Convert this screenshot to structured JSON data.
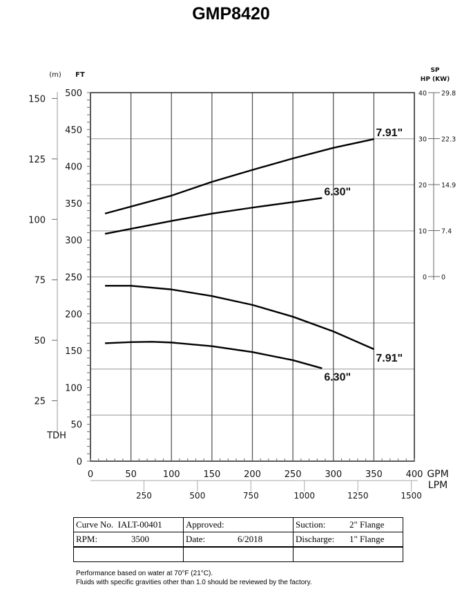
{
  "chart_data": {
    "type": "line",
    "title": "GMP8420",
    "xlabel": "GPM",
    "xlabel2": "LPM",
    "ylabel": "TDH",
    "y_unit_left_m": "(m)",
    "y_unit_left_ft": "FT",
    "y_right_label_top": "SP",
    "y_right_label": "HP  (KW)",
    "xlim": [
      0,
      400
    ],
    "ylim": [
      0,
      500
    ],
    "x_ticks": [
      0,
      50,
      100,
      150,
      200,
      250,
      300,
      350,
      400
    ],
    "y_ticks": [
      0,
      50,
      100,
      150,
      200,
      250,
      300,
      350,
      400,
      450,
      500
    ],
    "m_ticks": [
      25,
      50,
      75,
      100,
      125,
      150
    ],
    "lpm_ticks": [
      250,
      500,
      750,
      1000,
      1250,
      1500
    ],
    "hp_ticks": [
      {
        "hp": 0,
        "kw": "0"
      },
      {
        "hp": 10,
        "kw": "7.4"
      },
      {
        "hp": 20,
        "kw": "14.9"
      },
      {
        "hp": 30,
        "kw": "22.3"
      },
      {
        "hp": 40,
        "kw": "29.8"
      }
    ],
    "grid": true,
    "series": [
      {
        "name": "7.91\"",
        "kind": "head",
        "x": [
          18,
          50,
          100,
          150,
          200,
          250,
          300,
          350
        ],
        "y": [
          238,
          238,
          233,
          224,
          212,
          196,
          176,
          152
        ]
      },
      {
        "name": "6.30\"",
        "kind": "head",
        "x": [
          18,
          50,
          76,
          100,
          150,
          200,
          250,
          286
        ],
        "y": [
          160,
          161.5,
          162,
          161,
          156,
          148,
          137,
          126
        ]
      },
      {
        "name": "7.91\"",
        "kind": "power_hp",
        "x": [
          18,
          100,
          150,
          200,
          250,
          300,
          350
        ],
        "y": [
          13.7,
          17.6,
          20.6,
          23.2,
          25.7,
          28.0,
          29.9
        ]
      },
      {
        "name": "6.30\"",
        "kind": "power_hp",
        "x": [
          18,
          100,
          150,
          200,
          250,
          286
        ],
        "y": [
          9.3,
          12.1,
          13.7,
          15.0,
          16.2,
          17.1
        ]
      }
    ]
  },
  "info_table": {
    "curve_no_label": "Curve No.",
    "curve_no": "IALT-00401",
    "approved_label": "Approved:",
    "suction_label": "Suction:",
    "suction": "2\" Flange",
    "rpm_label": "RPM:",
    "rpm": "3500",
    "date_label": "Date:",
    "date": "6/2018",
    "discharge_label": "Discharge:",
    "discharge": "1\" Flange"
  },
  "notes": [
    "Performance based on water at 70°F (21°C).",
    "Fluids with specific gravities other than 1.0 should be reviewed by the factory."
  ]
}
